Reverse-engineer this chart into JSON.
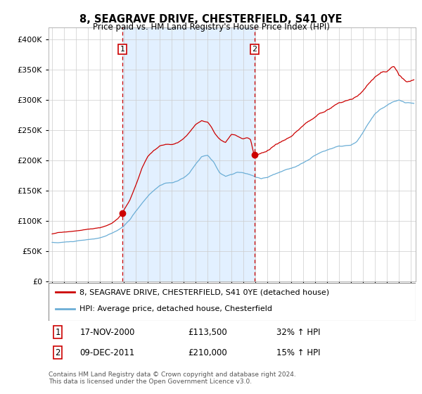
{
  "title": "8, SEAGRAVE DRIVE, CHESTERFIELD, S41 0YE",
  "subtitle": "Price paid vs. HM Land Registry's House Price Index (HPI)",
  "sale1_label": "1",
  "sale2_label": "2",
  "legend_line1": "8, SEAGRAVE DRIVE, CHESTERFIELD, S41 0YE (detached house)",
  "legend_line2": "HPI: Average price, detached house, Chesterfield",
  "date1_str": "17-NOV-2000",
  "price1_str": "£113,500",
  "pct1_str": "32% ↑ HPI",
  "date2_str": "09-DEC-2011",
  "price2_str": "£210,000",
  "pct2_str": "15% ↑ HPI",
  "footnote": "Contains HM Land Registry data © Crown copyright and database right 2024.\nThis data is licensed under the Open Government Licence v3.0.",
  "hpi_color": "#6baed6",
  "price_color": "#cc0000",
  "bg_shaded_color": "#ddeeff",
  "vline_color": "#cc0000",
  "grid_color": "#cccccc",
  "sale1_price": 113500,
  "sale2_price": 210000,
  "sale1_t": 2000.88,
  "sale2_t": 2011.94,
  "ylim": [
    0,
    420000
  ],
  "xlim_start": 1994.7,
  "xlim_end": 2025.4
}
